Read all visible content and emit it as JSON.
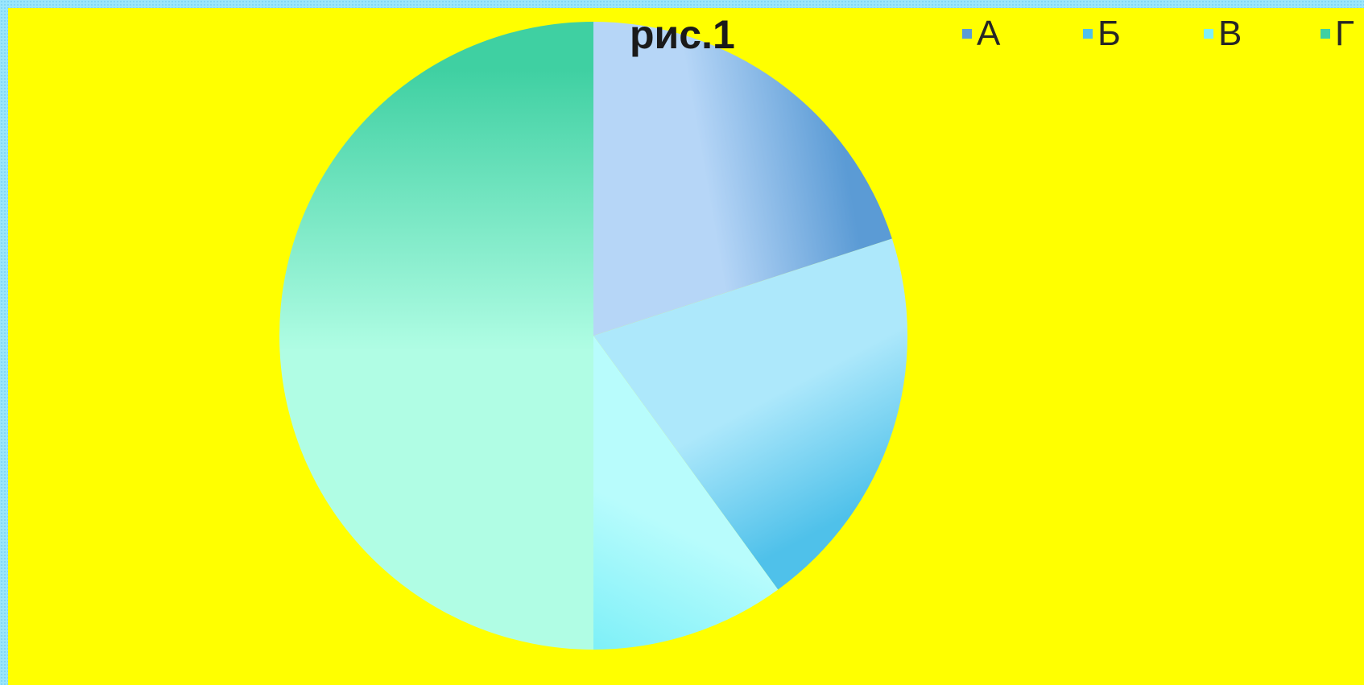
{
  "chart_data": {
    "type": "pie",
    "title": "рис.1",
    "legend_position": "top-right",
    "slices": [
      {
        "label": "А",
        "value": 20,
        "color": "#5b9bd5",
        "light": "#b6d6f7"
      },
      {
        "label": "Б",
        "value": 20,
        "color": "#4fc1ea",
        "light": "#ade8fb"
      },
      {
        "label": "В",
        "value": 10,
        "color": "#7ff0f8",
        "light": "#b8fcfc"
      },
      {
        "label": "Г",
        "value": 50,
        "color": "#3fd0a2",
        "light": "#b0fde4"
      }
    ]
  }
}
